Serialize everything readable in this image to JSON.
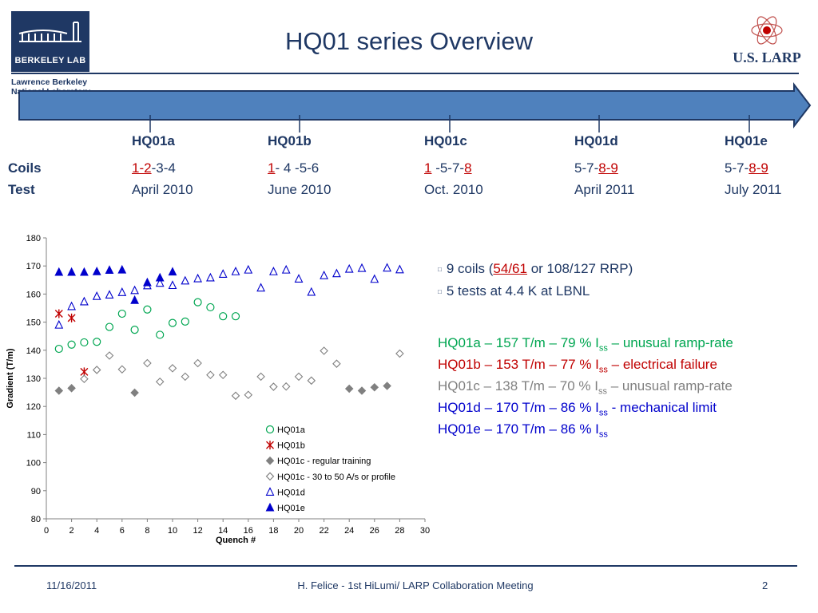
{
  "title": "HQ01 series Overview",
  "logo": {
    "lab_abbrev": "BERKELEY LAB",
    "lab_name_line1": "Lawrence Berkeley",
    "lab_name_line2": "National Laboratory",
    "partner": "U.S. LARP"
  },
  "timeline": {
    "row_labels": {
      "coils": "Coils",
      "test": "Test"
    },
    "phases": [
      {
        "name": "HQ01a",
        "coils": [
          {
            "t": "1-2",
            "red": true
          },
          {
            "t": "-3-4",
            "red": false
          }
        ],
        "test": "April 2010"
      },
      {
        "name": "HQ01b",
        "coils": [
          {
            "t": "1",
            "red": true
          },
          {
            "t": "- 4 -5-6",
            "red": false
          }
        ],
        "test": "June 2010"
      },
      {
        "name": "HQ01c",
        "coils": [
          {
            "t": "1",
            "red": true
          },
          {
            "t": " -5-7-",
            "red": false
          },
          {
            "t": "8",
            "red": true
          }
        ],
        "test": "Oct. 2010"
      },
      {
        "name": "HQ01d",
        "coils": [
          {
            "t": "5-7-",
            "red": false
          },
          {
            "t": "8-9",
            "red": true
          }
        ],
        "test": "April 2011"
      },
      {
        "name": "HQ01e",
        "coils": [
          {
            "t": "5-7-",
            "red": false
          },
          {
            "t": "8-9",
            "red": true
          }
        ],
        "test": "July 2011"
      }
    ]
  },
  "bullets": {
    "b1_pre": "9 coils (",
    "b1_link": "54/61",
    "b1_post": " or 108/127 RRP)",
    "b2": "5 tests at 4.4 K at LBNL"
  },
  "results": [
    {
      "pre": "HQ01a – 157 T/m – 79 % I",
      "sub": "ss",
      "post": " – unusual ramp-rate",
      "color": "#00a651"
    },
    {
      "pre": "HQ01b – 153 T/m – 77 % I",
      "sub": "ss",
      "post": " – electrical failure",
      "color": "#c00000"
    },
    {
      "pre": "HQ01c – 138 T/m – 70 % I",
      "sub": "ss",
      "post": " – unusual ramp-rate",
      "color": "#808080"
    },
    {
      "pre": "HQ01d – 170 T/m – 86 % I",
      "sub": "ss",
      "post": " - mechanical limit",
      "color": "#0000cc"
    },
    {
      "pre": "HQ01e – 170 T/m – 86 % I",
      "sub": "ss",
      "post": "",
      "color": "#0000cc"
    }
  ],
  "footer": {
    "date": "11/16/2011",
    "meeting": "H. Felice - 1st HiLumi/ LARP Collaboration Meeting",
    "page": "2"
  },
  "chart_data": {
    "type": "scatter",
    "xlabel": "Quench #",
    "ylabel": "Gradient (T/m)",
    "xlim": [
      0,
      30
    ],
    "ylim": [
      80,
      180
    ],
    "xticks": [
      0,
      2,
      4,
      6,
      8,
      10,
      12,
      14,
      16,
      18,
      20,
      22,
      24,
      26,
      28,
      30
    ],
    "yticks": [
      80,
      90,
      100,
      110,
      120,
      130,
      140,
      150,
      160,
      170,
      180
    ],
    "grid": false,
    "legend_position": "bottom-right",
    "series": [
      {
        "name": "HQ01a",
        "marker": "circle-open",
        "color": "#00a651",
        "x": [
          1,
          2,
          3,
          4,
          5,
          6,
          7,
          8,
          9,
          10,
          11,
          12,
          13,
          14,
          15
        ],
        "y": [
          140.5,
          142,
          142.8,
          143,
          148.3,
          153,
          147.3,
          154.5,
          145.5,
          149.7,
          150.2,
          157.1,
          155.3,
          152.1,
          152.1
        ]
      },
      {
        "name": "HQ01b",
        "marker": "asterisk",
        "color": "#c00000",
        "x": [
          1,
          2,
          3
        ],
        "y": [
          153,
          151.5,
          132.3
        ]
      },
      {
        "name": "HQ01c - regular training",
        "marker": "diamond-filled",
        "color": "#808080",
        "x": [
          1,
          2,
          7,
          24,
          25,
          26,
          27
        ],
        "y": [
          125.6,
          126.5,
          124.9,
          126.3,
          125.6,
          126.8,
          127.3
        ]
      },
      {
        "name": "HQ01c - 30 to 50 A/s or profile",
        "marker": "diamond-open",
        "color": "#808080",
        "x": [
          3,
          4,
          5,
          6,
          8,
          9,
          10,
          11,
          12,
          13,
          14,
          15,
          16,
          17,
          18,
          19,
          20,
          21,
          22,
          23,
          28
        ],
        "y": [
          129.8,
          133,
          138.1,
          133.2,
          135.4,
          128.8,
          133.6,
          130.6,
          135.4,
          131.2,
          131.2,
          123.8,
          124.1,
          130.6,
          127,
          127.1,
          130.6,
          129.2,
          139.8,
          135.2,
          138.8
        ]
      },
      {
        "name": "HQ01d",
        "marker": "triangle-open",
        "color": "#0000cc",
        "x": [
          1,
          2,
          3,
          4,
          5,
          6,
          7,
          8,
          9,
          10,
          11,
          12,
          13,
          14,
          15,
          16,
          17,
          18,
          19,
          20,
          21,
          22,
          23,
          24,
          25,
          26,
          27,
          28
        ],
        "y": [
          149,
          155.6,
          157.3,
          159.2,
          159.7,
          160.6,
          161.3,
          163,
          163.9,
          163.1,
          164.7,
          165.5,
          165.8,
          167.1,
          168,
          168.6,
          162.2,
          168,
          168.6,
          165.4,
          160.7,
          166.6,
          167.3,
          168.9,
          169.2,
          165.3,
          169.3,
          168.7
        ]
      },
      {
        "name": "HQ01e",
        "marker": "triangle-filled",
        "color": "#0000cc",
        "x": [
          1,
          2,
          3,
          4,
          5,
          6,
          7,
          8,
          9,
          10
        ],
        "y": [
          167.8,
          167.8,
          167.8,
          168,
          168.5,
          168.6,
          157.8,
          164.1,
          165.8,
          167.9
        ]
      }
    ]
  }
}
